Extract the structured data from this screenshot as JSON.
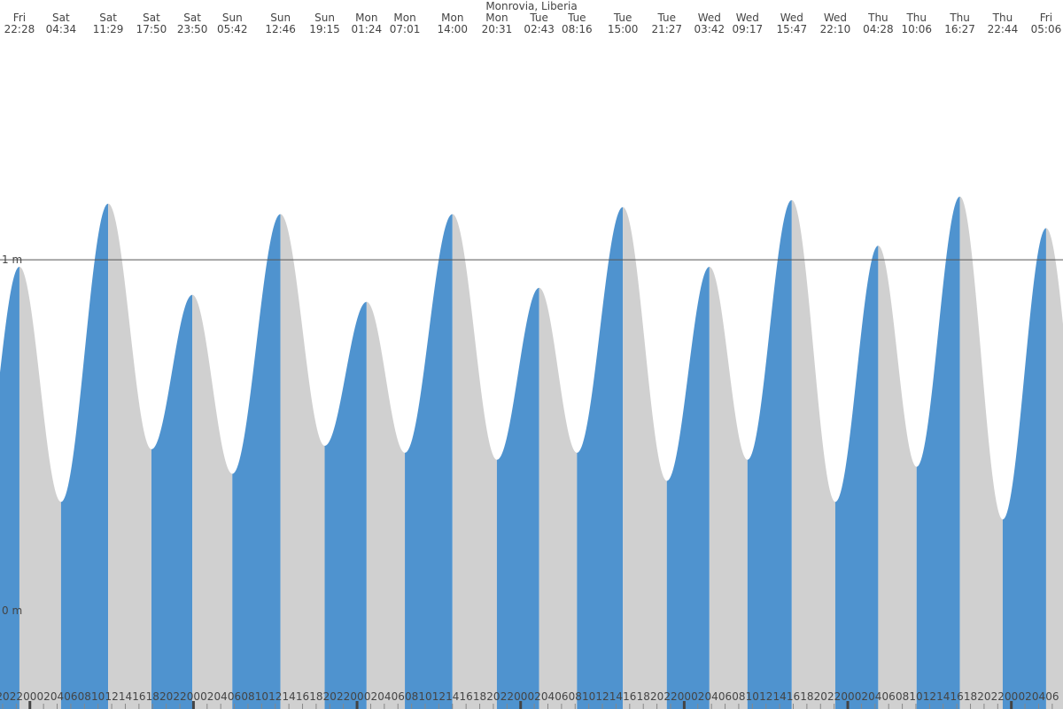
{
  "chart_data": {
    "type": "tide",
    "title": "Monrovia, Liberia",
    "ylim": [
      -0.28,
      1.74
    ],
    "yticks": [
      {
        "value": 0,
        "label": "0 m"
      },
      {
        "value": 1,
        "label": "1 m"
      }
    ],
    "rising_color": "#4f93cf",
    "falling_color": "#d0d0d0",
    "extremes": [
      {
        "day": "Fri",
        "time": "22:28",
        "height": 0.98
      },
      {
        "day": "Sat",
        "time": "04:34",
        "height": 0.31
      },
      {
        "day": "Sat",
        "time": "11:29",
        "height": 1.16
      },
      {
        "day": "Sat",
        "time": "17:50",
        "height": 0.46
      },
      {
        "day": "Sat",
        "time": "23:50",
        "height": 0.9
      },
      {
        "day": "Sun",
        "time": "05:42",
        "height": 0.39
      },
      {
        "day": "Sun",
        "time": "12:46",
        "height": 1.13
      },
      {
        "day": "Sun",
        "time": "19:15",
        "height": 0.47
      },
      {
        "day": "Mon",
        "time": "01:24",
        "height": 0.88
      },
      {
        "day": "Mon",
        "time": "07:01",
        "height": 0.45
      },
      {
        "day": "Mon",
        "time": "14:00",
        "height": 1.13
      },
      {
        "day": "Mon",
        "time": "20:31",
        "height": 0.43
      },
      {
        "day": "Tue",
        "time": "02:43",
        "height": 0.92
      },
      {
        "day": "Tue",
        "time": "08:16",
        "height": 0.45
      },
      {
        "day": "Tue",
        "time": "15:00",
        "height": 1.15
      },
      {
        "day": "Tue",
        "time": "21:27",
        "height": 0.37
      },
      {
        "day": "Wed",
        "time": "03:42",
        "height": 0.98
      },
      {
        "day": "Wed",
        "time": "09:17",
        "height": 0.43
      },
      {
        "day": "Wed",
        "time": "15:47",
        "height": 1.17
      },
      {
        "day": "Wed",
        "time": "22:10",
        "height": 0.31
      },
      {
        "day": "Thu",
        "time": "04:28",
        "height": 1.04
      },
      {
        "day": "Thu",
        "time": "10:06",
        "height": 0.41
      },
      {
        "day": "Thu",
        "time": "16:27",
        "height": 1.18
      },
      {
        "day": "Thu",
        "time": "22:44",
        "height": 0.26
      },
      {
        "day": "Fri",
        "time": "05:06",
        "height": 1.09
      }
    ],
    "hour_labels": [
      "20",
      "22",
      "00",
      "02",
      "04",
      "06",
      "08",
      "10",
      "12",
      "14",
      "16",
      "18",
      "20",
      "22",
      "00",
      "02",
      "04",
      "06",
      "08",
      "10",
      "12",
      "14",
      "16",
      "18",
      "20",
      "22",
      "00",
      "02",
      "04",
      "06",
      "08",
      "10",
      "12",
      "14",
      "16",
      "18",
      "20",
      "22",
      "00",
      "02",
      "04",
      "06",
      "08",
      "10",
      "12",
      "14",
      "16",
      "18",
      "20",
      "22",
      "00",
      "02",
      "04",
      "06",
      "08",
      "10",
      "12",
      "14",
      "16",
      "18",
      "20",
      "22",
      "00",
      "02",
      "04",
      "06",
      "08",
      "10",
      "12",
      "14",
      "16",
      "18",
      "20",
      "22",
      "00",
      "02",
      "04",
      "06"
    ]
  }
}
